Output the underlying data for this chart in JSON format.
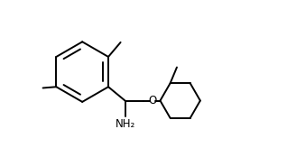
{
  "line_color": "#000000",
  "bg_color": "#ffffff",
  "line_width": 1.4,
  "font_size_nh2": 8.5,
  "font_size_o": 8.5,
  "figsize": [
    3.18,
    1.74
  ],
  "dpi": 100,
  "xlim": [
    0.0,
    10.5
  ],
  "ylim": [
    -0.5,
    6.5
  ]
}
